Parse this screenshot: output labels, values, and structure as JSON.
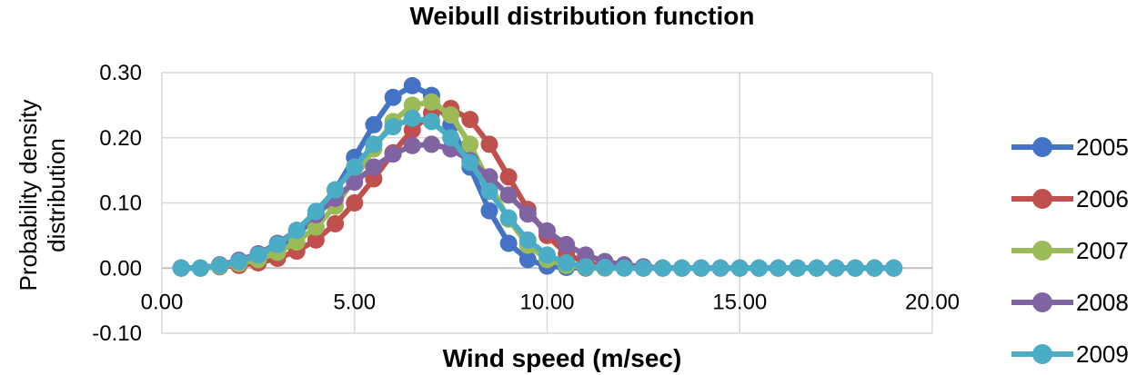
{
  "chart_data": {
    "type": "line",
    "title": "Weibull distribution function",
    "xlabel": "Wind speed (m/sec)",
    "ylabel": [
      "Probability density",
      "distribution"
    ],
    "xlim": [
      0,
      20
    ],
    "ylim": [
      -0.1,
      0.3
    ],
    "x_ticks": [
      "0.00",
      "5.00",
      "10.00",
      "15.00",
      "20.00"
    ],
    "y_ticks": [
      "-0.10",
      "0.00",
      "0.10",
      "0.20",
      "0.30"
    ],
    "x_tick_values": [
      0,
      5,
      10,
      15,
      20
    ],
    "y_tick_values": [
      -0.1,
      0,
      0.1,
      0.2,
      0.3
    ],
    "grid": true,
    "legend_position": "right",
    "x": [
      0.5,
      1.0,
      1.5,
      2.0,
      2.5,
      3.0,
      3.5,
      4.0,
      4.5,
      5.0,
      5.5,
      6.0,
      6.5,
      7.0,
      7.5,
      8.0,
      8.5,
      9.0,
      9.5,
      10.0,
      10.5,
      11.0,
      11.5,
      12.0,
      12.5,
      13.0,
      13.5,
      14.0,
      14.5,
      15.0,
      15.5,
      16.0,
      16.5,
      17.0,
      17.5,
      18.0,
      18.5,
      19.0
    ],
    "series": [
      {
        "name": "2005",
        "color": "#4472c4",
        "values": [
          0,
          0,
          0.003,
          0.008,
          0.016,
          0.03,
          0.05,
          0.08,
          0.12,
          0.17,
          0.22,
          0.262,
          0.28,
          0.265,
          0.22,
          0.155,
          0.088,
          0.038,
          0.013,
          0.003,
          0.001,
          0,
          0,
          0,
          0,
          0,
          0,
          0,
          0,
          0,
          0,
          0,
          0,
          0,
          0,
          0,
          0,
          0
        ]
      },
      {
        "name": "2006",
        "color": "#c0504d",
        "values": [
          0,
          0,
          0.002,
          0.004,
          0.008,
          0.015,
          0.026,
          0.043,
          0.068,
          0.1,
          0.137,
          0.177,
          0.212,
          0.238,
          0.245,
          0.228,
          0.19,
          0.14,
          0.09,
          0.05,
          0.022,
          0.008,
          0.003,
          0.001,
          0,
          0,
          0,
          0,
          0,
          0,
          0,
          0,
          0,
          0,
          0,
          0,
          0,
          0
        ]
      },
      {
        "name": "2007",
        "color": "#9bbb59",
        "values": [
          0,
          0,
          0.003,
          0.007,
          0.013,
          0.024,
          0.04,
          0.063,
          0.095,
          0.137,
          0.183,
          0.225,
          0.25,
          0.255,
          0.235,
          0.19,
          0.13,
          0.075,
          0.035,
          0.013,
          0.004,
          0.001,
          0,
          0,
          0,
          0,
          0,
          0,
          0,
          0,
          0,
          0,
          0,
          0,
          0,
          0,
          0,
          0
        ]
      },
      {
        "name": "2008",
        "color": "#8064a2",
        "values": [
          0,
          0,
          0.005,
          0.012,
          0.022,
          0.038,
          0.058,
          0.082,
          0.107,
          0.132,
          0.155,
          0.175,
          0.188,
          0.19,
          0.183,
          0.165,
          0.14,
          0.112,
          0.083,
          0.057,
          0.036,
          0.02,
          0.01,
          0.005,
          0.002,
          0,
          0,
          0,
          0,
          0,
          0,
          0,
          0,
          0,
          0,
          0,
          0,
          0
        ]
      },
      {
        "name": "2009",
        "color": "#4bacc6",
        "values": [
          0,
          0,
          0.004,
          0.01,
          0.02,
          0.036,
          0.058,
          0.087,
          0.12,
          0.155,
          0.19,
          0.217,
          0.23,
          0.225,
          0.2,
          0.162,
          0.118,
          0.077,
          0.043,
          0.02,
          0.008,
          0.002,
          0.001,
          0,
          0,
          0,
          0,
          0,
          0,
          0,
          0,
          0,
          0,
          0,
          0,
          0,
          0,
          0
        ]
      }
    ]
  }
}
